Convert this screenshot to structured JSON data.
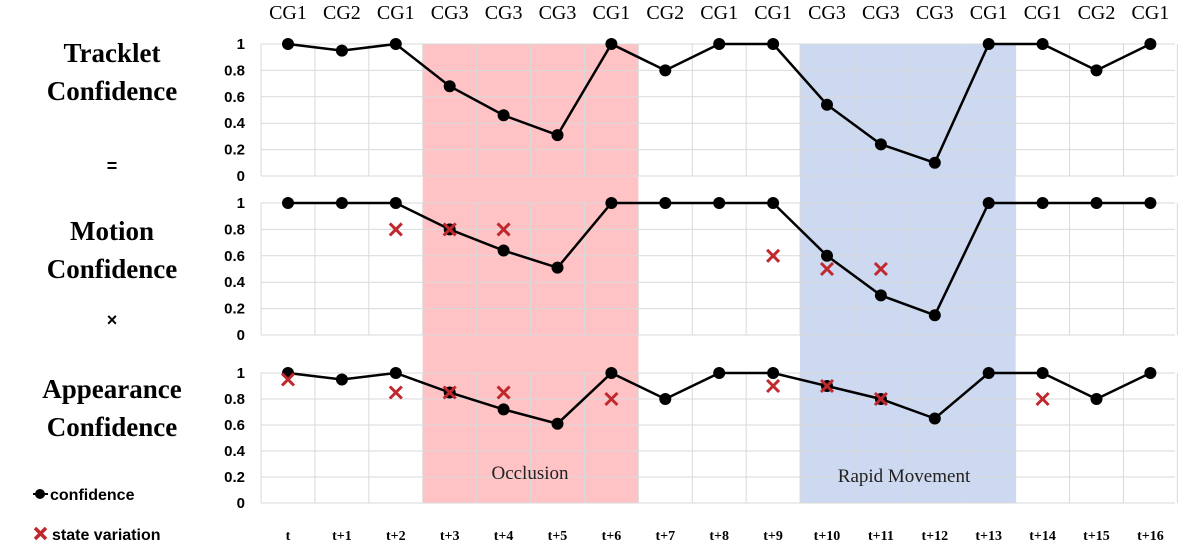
{
  "chart_data": {
    "type": "line",
    "x": [
      "t",
      "t+1",
      "t+2",
      "t+3",
      "t+4",
      "t+5",
      "t+6",
      "t+7",
      "t+8",
      "t+9",
      "t+10",
      "t+11",
      "t+12",
      "t+13",
      "t+14",
      "t+15",
      "t+16"
    ],
    "cg_labels": [
      "CG1",
      "CG2",
      "CG1",
      "CG3",
      "CG3",
      "CG3",
      "CG1",
      "CG2",
      "CG1",
      "CG1",
      "CG3",
      "CG3",
      "CG3",
      "CG1",
      "CG1",
      "CG2",
      "CG1"
    ],
    "yticks": [
      "1",
      "0.8",
      "0.6",
      "0.4",
      "0.2",
      "0"
    ],
    "ylim": [
      0,
      1
    ],
    "operators": [
      "=",
      "×"
    ],
    "panels": [
      {
        "title_lines": [
          "Tracklet",
          "Confidence"
        ],
        "confidence": [
          1,
          0.95,
          1,
          0.68,
          0.46,
          0.31,
          1,
          0.8,
          1,
          1,
          0.54,
          0.24,
          0.1,
          1,
          1,
          0.8,
          1
        ],
        "state_variation": [
          null,
          null,
          null,
          null,
          null,
          null,
          null,
          null,
          null,
          null,
          null,
          null,
          null,
          null,
          null,
          null,
          null
        ]
      },
      {
        "title_lines": [
          "Motion",
          "Confidence"
        ],
        "confidence": [
          1,
          1,
          1,
          0.8,
          0.64,
          0.51,
          1,
          1,
          1,
          1,
          0.6,
          0.3,
          0.15,
          1,
          1,
          1,
          1
        ],
        "state_variation": [
          null,
          null,
          0.8,
          0.8,
          0.8,
          null,
          null,
          null,
          null,
          0.6,
          0.5,
          0.5,
          null,
          null,
          null,
          null,
          null
        ]
      },
      {
        "title_lines": [
          "Appearance",
          "Confidence"
        ],
        "confidence": [
          1,
          0.95,
          1,
          0.85,
          0.72,
          0.61,
          1,
          0.8,
          1,
          1,
          0.9,
          0.8,
          0.65,
          1,
          1,
          0.8,
          1
        ],
        "state_variation": [
          0.95,
          null,
          0.85,
          0.85,
          0.85,
          null,
          0.8,
          null,
          null,
          0.9,
          0.9,
          0.8,
          null,
          null,
          0.8,
          null,
          null
        ]
      }
    ],
    "regions": [
      {
        "label": "Occlusion",
        "from": "t+3",
        "to": "t+6",
        "color": "#ffc0c3"
      },
      {
        "label": "Rapid Movement",
        "from": "t+10",
        "to": "t+13",
        "color": "#c9d7ef"
      }
    ],
    "legend": [
      {
        "label": "confidence",
        "marker": "dot-line"
      },
      {
        "label": "state variation",
        "marker": "cross"
      }
    ],
    "colors": {
      "line": "#000000",
      "cross": "#c0282d",
      "grid": "#d9d9d9"
    }
  }
}
